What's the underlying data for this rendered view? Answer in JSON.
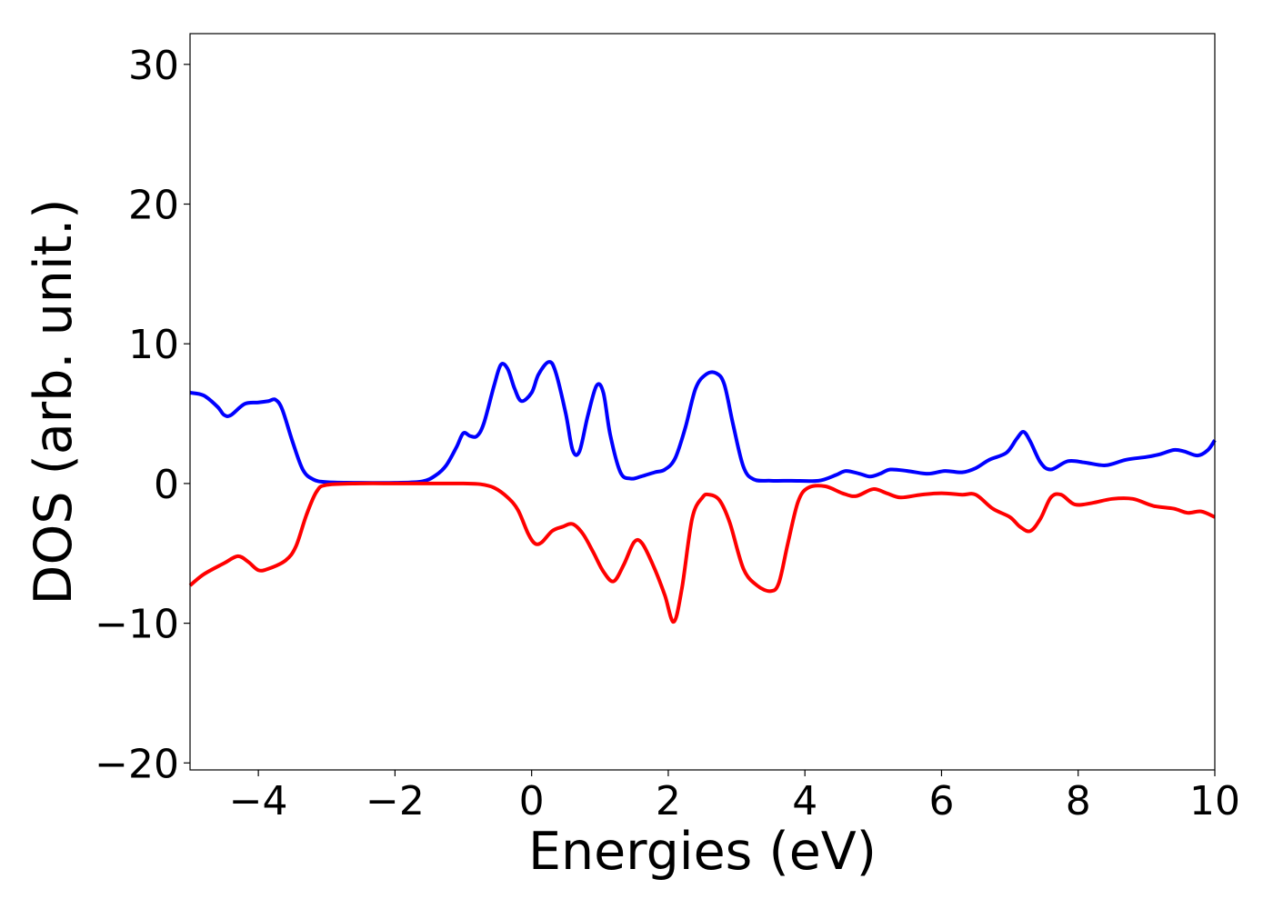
{
  "chart_data": {
    "type": "line",
    "title": "",
    "xlabel": "Energies (eV)",
    "ylabel": "DOS (arb. unit.)",
    "xlim": [
      -5,
      10
    ],
    "ylim": [
      -20.5,
      32.2
    ],
    "xticks": [
      -4,
      -2,
      0,
      2,
      4,
      6,
      8,
      10
    ],
    "yticks": [
      -20,
      -10,
      0,
      10,
      20,
      30
    ],
    "xtick_labels": [
      "−4",
      "−2",
      "0",
      "2",
      "4",
      "6",
      "8",
      "10"
    ],
    "ytick_labels": [
      "−20",
      "−10",
      "0",
      "10",
      "20",
      "30"
    ],
    "grid": false,
    "legend": "none",
    "series": [
      {
        "color": "#0000ff",
        "points": [
          [
            -5.0,
            6.5
          ],
          [
            -4.8,
            6.3
          ],
          [
            -4.6,
            5.5
          ],
          [
            -4.5,
            4.9
          ],
          [
            -4.4,
            4.9
          ],
          [
            -4.2,
            5.7
          ],
          [
            -4.0,
            5.8
          ],
          [
            -3.85,
            5.9
          ],
          [
            -3.75,
            6.0
          ],
          [
            -3.65,
            5.3
          ],
          [
            -3.5,
            3.0
          ],
          [
            -3.35,
            1.0
          ],
          [
            -3.2,
            0.3
          ],
          [
            -3.0,
            0.1
          ],
          [
            -2.5,
            0.05
          ],
          [
            -2.0,
            0.05
          ],
          [
            -1.6,
            0.15
          ],
          [
            -1.4,
            0.6
          ],
          [
            -1.25,
            1.3
          ],
          [
            -1.1,
            2.6
          ],
          [
            -1.0,
            3.6
          ],
          [
            -0.9,
            3.4
          ],
          [
            -0.8,
            3.4
          ],
          [
            -0.7,
            4.3
          ],
          [
            -0.55,
            7.0
          ],
          [
            -0.45,
            8.5
          ],
          [
            -0.35,
            8.2
          ],
          [
            -0.25,
            6.8
          ],
          [
            -0.15,
            5.9
          ],
          [
            0.0,
            6.5
          ],
          [
            0.1,
            7.8
          ],
          [
            0.25,
            8.7
          ],
          [
            0.35,
            8.0
          ],
          [
            0.5,
            5.0
          ],
          [
            0.6,
            2.4
          ],
          [
            0.7,
            2.3
          ],
          [
            0.82,
            4.8
          ],
          [
            0.95,
            7.0
          ],
          [
            1.05,
            6.5
          ],
          [
            1.15,
            3.5
          ],
          [
            1.3,
            0.8
          ],
          [
            1.45,
            0.35
          ],
          [
            1.6,
            0.5
          ],
          [
            1.8,
            0.8
          ],
          [
            1.95,
            1.0
          ],
          [
            2.1,
            1.8
          ],
          [
            2.25,
            4.0
          ],
          [
            2.4,
            6.8
          ],
          [
            2.55,
            7.8
          ],
          [
            2.7,
            7.9
          ],
          [
            2.82,
            7.1
          ],
          [
            2.95,
            4.2
          ],
          [
            3.1,
            1.2
          ],
          [
            3.25,
            0.3
          ],
          [
            3.5,
            0.2
          ],
          [
            3.8,
            0.2
          ],
          [
            4.2,
            0.2
          ],
          [
            4.45,
            0.6
          ],
          [
            4.6,
            0.9
          ],
          [
            4.8,
            0.7
          ],
          [
            4.95,
            0.5
          ],
          [
            5.1,
            0.7
          ],
          [
            5.25,
            1.0
          ],
          [
            5.5,
            0.9
          ],
          [
            5.8,
            0.7
          ],
          [
            6.05,
            0.9
          ],
          [
            6.3,
            0.8
          ],
          [
            6.5,
            1.1
          ],
          [
            6.7,
            1.7
          ],
          [
            6.95,
            2.2
          ],
          [
            7.1,
            3.2
          ],
          [
            7.2,
            3.7
          ],
          [
            7.3,
            3.0
          ],
          [
            7.45,
            1.5
          ],
          [
            7.6,
            1.0
          ],
          [
            7.85,
            1.6
          ],
          [
            8.1,
            1.5
          ],
          [
            8.4,
            1.3
          ],
          [
            8.7,
            1.7
          ],
          [
            9.0,
            1.9
          ],
          [
            9.2,
            2.1
          ],
          [
            9.4,
            2.4
          ],
          [
            9.55,
            2.3
          ],
          [
            9.75,
            2.0
          ],
          [
            9.9,
            2.4
          ],
          [
            10.0,
            3.1
          ]
        ]
      },
      {
        "color": "#ff0000",
        "points": [
          [
            -5.0,
            -7.3
          ],
          [
            -4.8,
            -6.5
          ],
          [
            -4.5,
            -5.7
          ],
          [
            -4.3,
            -5.2
          ],
          [
            -4.15,
            -5.6
          ],
          [
            -4.0,
            -6.2
          ],
          [
            -3.85,
            -6.1
          ],
          [
            -3.6,
            -5.5
          ],
          [
            -3.45,
            -4.5
          ],
          [
            -3.3,
            -2.3
          ],
          [
            -3.15,
            -0.6
          ],
          [
            -3.0,
            -0.1
          ],
          [
            -2.5,
            0.0
          ],
          [
            -2.0,
            0.0
          ],
          [
            -1.5,
            0.0
          ],
          [
            -1.0,
            0.0
          ],
          [
            -0.75,
            -0.05
          ],
          [
            -0.55,
            -0.3
          ],
          [
            -0.35,
            -1.0
          ],
          [
            -0.2,
            -1.9
          ],
          [
            -0.05,
            -3.6
          ],
          [
            0.05,
            -4.3
          ],
          [
            0.15,
            -4.2
          ],
          [
            0.3,
            -3.4
          ],
          [
            0.45,
            -3.1
          ],
          [
            0.6,
            -2.9
          ],
          [
            0.75,
            -3.6
          ],
          [
            0.9,
            -4.9
          ],
          [
            1.05,
            -6.3
          ],
          [
            1.2,
            -7.0
          ],
          [
            1.35,
            -5.8
          ],
          [
            1.5,
            -4.2
          ],
          [
            1.62,
            -4.3
          ],
          [
            1.8,
            -6.1
          ],
          [
            1.95,
            -8.0
          ],
          [
            2.08,
            -9.9
          ],
          [
            2.2,
            -7.5
          ],
          [
            2.35,
            -2.5
          ],
          [
            2.5,
            -1.0
          ],
          [
            2.6,
            -0.8
          ],
          [
            2.75,
            -1.2
          ],
          [
            2.9,
            -2.8
          ],
          [
            3.1,
            -6.1
          ],
          [
            3.3,
            -7.3
          ],
          [
            3.5,
            -7.7
          ],
          [
            3.62,
            -7.1
          ],
          [
            3.75,
            -4.3
          ],
          [
            3.9,
            -1.3
          ],
          [
            4.05,
            -0.3
          ],
          [
            4.3,
            -0.2
          ],
          [
            4.55,
            -0.7
          ],
          [
            4.75,
            -0.9
          ],
          [
            5.0,
            -0.4
          ],
          [
            5.2,
            -0.7
          ],
          [
            5.4,
            -1.0
          ],
          [
            5.7,
            -0.8
          ],
          [
            6.0,
            -0.7
          ],
          [
            6.3,
            -0.8
          ],
          [
            6.5,
            -0.8
          ],
          [
            6.75,
            -1.8
          ],
          [
            7.0,
            -2.4
          ],
          [
            7.15,
            -3.1
          ],
          [
            7.3,
            -3.4
          ],
          [
            7.45,
            -2.5
          ],
          [
            7.6,
            -1.0
          ],
          [
            7.75,
            -0.8
          ],
          [
            7.95,
            -1.5
          ],
          [
            8.2,
            -1.4
          ],
          [
            8.5,
            -1.1
          ],
          [
            8.8,
            -1.1
          ],
          [
            9.1,
            -1.6
          ],
          [
            9.4,
            -1.8
          ],
          [
            9.6,
            -2.1
          ],
          [
            9.8,
            -2.0
          ],
          [
            10.0,
            -2.4
          ]
        ]
      }
    ]
  }
}
